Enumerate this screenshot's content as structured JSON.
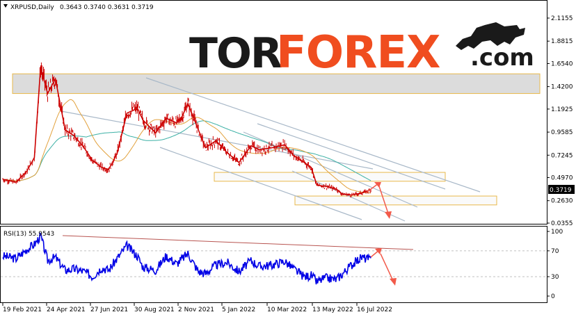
{
  "header": {
    "symbol_text": "XRPUSD,Daily",
    "ohlc_text": "0.3643 0.3740 0.3631 0.3719"
  },
  "logo": {
    "text_dark": "TOR",
    "text_accent": "FOREX",
    "text_suffix": ".com",
    "color_dark": "#1a1a1a",
    "color_accent": "#f04d1f",
    "icon": "bull-icon"
  },
  "price_panel": {
    "y_ticks": [
      "2.1155",
      "1.8815",
      "1.6540",
      "1.4200",
      "1.1925",
      "0.9585",
      "0.7245",
      "0.4970",
      "0.2630",
      "0.0355"
    ],
    "current_price_label": "0.3719",
    "colors": {
      "candles": "#cc0000",
      "ma_slow": "#3bb0a5",
      "ma_fast": "#e2a13c",
      "resistance_zone": "#d0d0d0",
      "zone_border": "#e8b84a",
      "trend_lines": "#a8b8c8",
      "forecast_arrow": "#f25a4a",
      "price_marker": "#000000"
    }
  },
  "rsi_panel": {
    "label": "RSI(13) 55.9543",
    "y_ticks": [
      "100",
      "70",
      "30",
      "0"
    ],
    "levels": [
      70,
      30
    ],
    "colors": {
      "line": "#0000e6",
      "trend": "#b85450",
      "arrow": "#f25a4a"
    }
  },
  "x_axis": {
    "labels": [
      "19 Feb 2021",
      "24 Apr 2021",
      "27 Jun 2021",
      "30 Aug 2021",
      "2 Nov 2021",
      "5 Jan 2022",
      "10 Mar 2022",
      "13 May 2022",
      "16 Jul 2022"
    ]
  },
  "chart_data": [
    {
      "type": "line",
      "title": "XRPUSD,Daily",
      "x": [
        "2021-02-19",
        "2021-03-10",
        "2021-03-25",
        "2021-04-05",
        "2021-04-14",
        "2021-04-24",
        "2021-05-05",
        "2021-05-19",
        "2021-06-01",
        "2021-06-15",
        "2021-06-27",
        "2021-07-10",
        "2021-07-20",
        "2021-08-01",
        "2021-08-15",
        "2021-08-30",
        "2021-09-07",
        "2021-09-25",
        "2021-10-10",
        "2021-10-25",
        "2021-11-02",
        "2021-11-10",
        "2021-11-25",
        "2021-12-05",
        "2021-12-20",
        "2022-01-05",
        "2022-01-22",
        "2022-02-08",
        "2022-02-20",
        "2022-03-10",
        "2022-03-28",
        "2022-04-10",
        "2022-04-25",
        "2022-05-05",
        "2022-05-13",
        "2022-05-25",
        "2022-06-10",
        "2022-06-18",
        "2022-07-01",
        "2022-07-16",
        "2022-07-29"
      ],
      "series": [
        {
          "values": [
            0.48,
            0.45,
            0.56,
            0.7,
            1.62,
            1.35,
            1.5,
            0.98,
            0.92,
            0.8,
            0.67,
            0.6,
            0.58,
            0.74,
            1.15,
            1.2,
            1.08,
            0.95,
            1.1,
            1.05,
            1.12,
            1.25,
            0.98,
            0.8,
            0.87,
            0.75,
            0.65,
            0.82,
            0.78,
            0.8,
            0.83,
            0.72,
            0.65,
            0.6,
            0.42,
            0.41,
            0.38,
            0.33,
            0.32,
            0.34,
            0.3719
          ]
        }
      ],
      "zones": [
        {
          "from": 1.35,
          "to": 1.55
        },
        {
          "from": 0.46,
          "to": 0.55
        },
        {
          "from": 0.22,
          "to": 0.31
        }
      ],
      "ylim": [
        0.0355,
        2.1155
      ]
    },
    {
      "type": "line",
      "title": "RSI(13) 55.9543",
      "x": [
        "2021-02-19",
        "2021-03-10",
        "2021-03-25",
        "2021-04-05",
        "2021-04-14",
        "2021-04-24",
        "2021-05-05",
        "2021-05-19",
        "2021-06-01",
        "2021-06-15",
        "2021-06-27",
        "2021-07-10",
        "2021-07-20",
        "2021-08-01",
        "2021-08-15",
        "2021-08-30",
        "2021-09-07",
        "2021-09-25",
        "2021-10-10",
        "2021-10-25",
        "2021-11-02",
        "2021-11-10",
        "2021-11-25",
        "2021-12-05",
        "2021-12-20",
        "2022-01-05",
        "2022-01-22",
        "2022-02-08",
        "2022-02-20",
        "2022-03-10",
        "2022-03-28",
        "2022-04-10",
        "2022-04-25",
        "2022-05-05",
        "2022-05-13",
        "2022-05-25",
        "2022-06-10",
        "2022-06-18",
        "2022-07-01",
        "2022-07-16",
        "2022-07-29"
      ],
      "series": [
        {
          "values": [
            62,
            58,
            72,
            80,
            93,
            55,
            60,
            40,
            42,
            38,
            30,
            44,
            40,
            58,
            78,
            62,
            45,
            40,
            62,
            50,
            58,
            66,
            38,
            35,
            48,
            52,
            38,
            55,
            46,
            48,
            54,
            42,
            30,
            32,
            22,
            28,
            26,
            34,
            48,
            60,
            55.9543
          ]
        }
      ],
      "levels": [
        70,
        30
      ],
      "ylim": [
        0,
        100
      ]
    }
  ]
}
